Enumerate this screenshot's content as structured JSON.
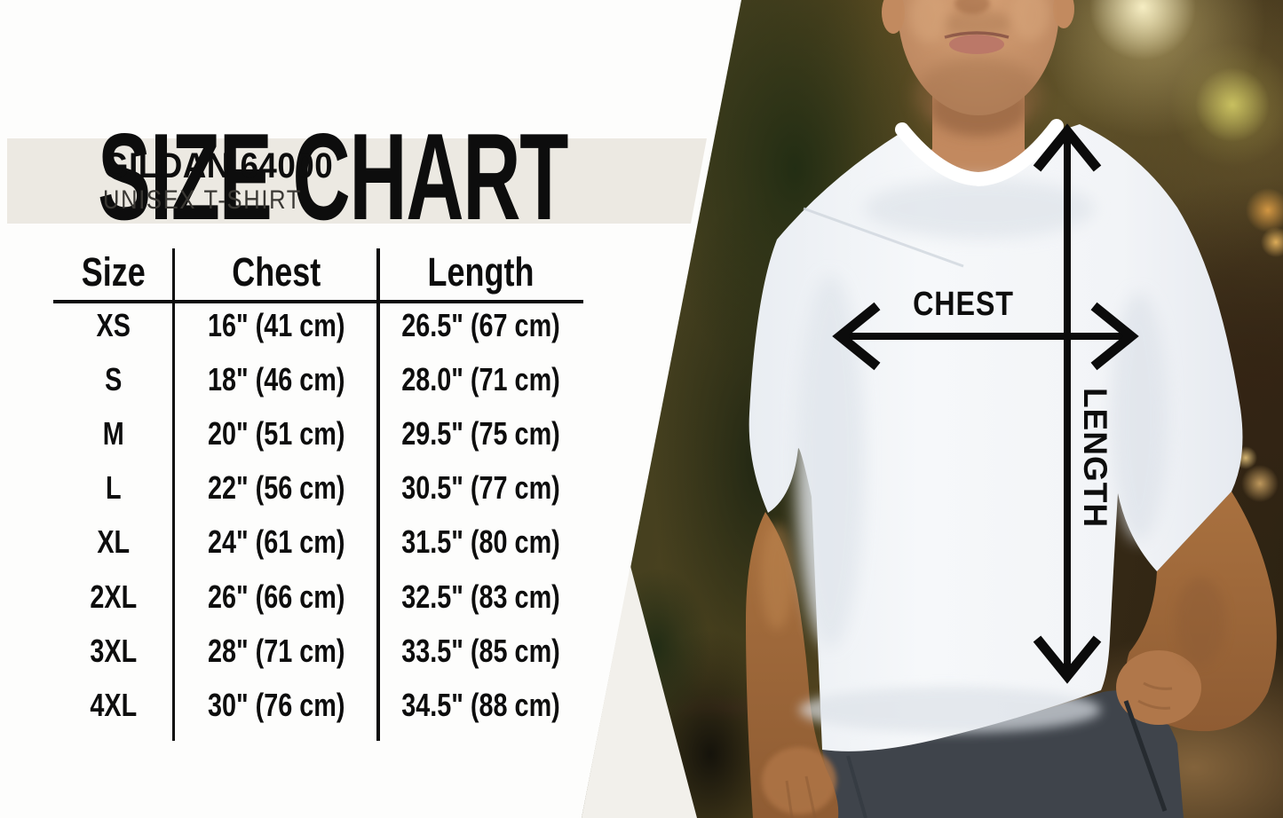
{
  "title": "SIZE CHART",
  "product": {
    "name": "GILDAN 64000",
    "type": "UNISEX T-SHIRT"
  },
  "table": {
    "columns": [
      "Size",
      "Chest",
      "Length"
    ],
    "rows": [
      [
        "XS",
        "16\" (41 cm)",
        "26.5\" (67 cm)"
      ],
      [
        "S",
        "18\" (46 cm)",
        "28.0\" (71 cm)"
      ],
      [
        "M",
        "20\" (51 cm)",
        "29.5\" (75 cm)"
      ],
      [
        "L",
        "22\" (56 cm)",
        "30.5\" (77 cm)"
      ],
      [
        "XL",
        "24\" (61 cm)",
        "31.5\" (80 cm)"
      ],
      [
        "2XL",
        "26\" (66 cm)",
        "32.5\" (83 cm)"
      ],
      [
        "3XL",
        "28\" (71 cm)",
        "33.5\" (85 cm)"
      ],
      [
        "4XL",
        "30\" (76 cm)",
        "34.5\" (88 cm)"
      ]
    ]
  },
  "photo": {
    "chest_label": "CHEST",
    "length_label": "LENGTH"
  },
  "colors": {
    "ink": "#0d0d0d",
    "panel_bg": "#fdfdfc",
    "band_bg": "#ece9e2",
    "wedge_bg": "#f2f0eb",
    "shirt": "#f3f5f8",
    "pants": "#3f444b",
    "skin": "#b97f52"
  }
}
